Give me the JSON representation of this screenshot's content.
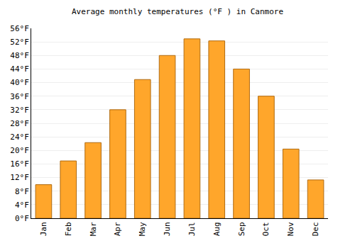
{
  "chart_data": {
    "type": "bar",
    "title": "Average monthly temperatures (°F ) in Canmore",
    "categories": [
      "Jan",
      "Feb",
      "Mar",
      "Apr",
      "May",
      "Jun",
      "Jul",
      "Aug",
      "Sep",
      "Oct",
      "Nov",
      "Dec"
    ],
    "values": [
      9.9,
      16.9,
      22.3,
      32.0,
      40.9,
      48.0,
      52.9,
      52.3,
      44.0,
      36.0,
      20.4,
      11.3
    ],
    "color": "#ffa62b",
    "ylim": [
      0,
      56
    ],
    "yticks": [
      {
        "value": 0,
        "label": "0°F"
      },
      {
        "value": 4,
        "label": "4°F"
      },
      {
        "value": 8,
        "label": "8°F"
      },
      {
        "value": 12,
        "label": "12°F"
      },
      {
        "value": 16,
        "label": "16°F"
      },
      {
        "value": 20,
        "label": "20°F"
      },
      {
        "value": 24,
        "label": "24°F"
      },
      {
        "value": 28,
        "label": "28°F"
      },
      {
        "value": 32,
        "label": "32°F"
      },
      {
        "value": 36,
        "label": "36°F"
      },
      {
        "value": 40,
        "label": "40°F"
      },
      {
        "value": 44,
        "label": "44°F"
      },
      {
        "value": 48,
        "label": "48°F"
      },
      {
        "value": 52,
        "label": "52°F"
      },
      {
        "value": 56,
        "label": "56°F"
      }
    ],
    "grid": true
  }
}
